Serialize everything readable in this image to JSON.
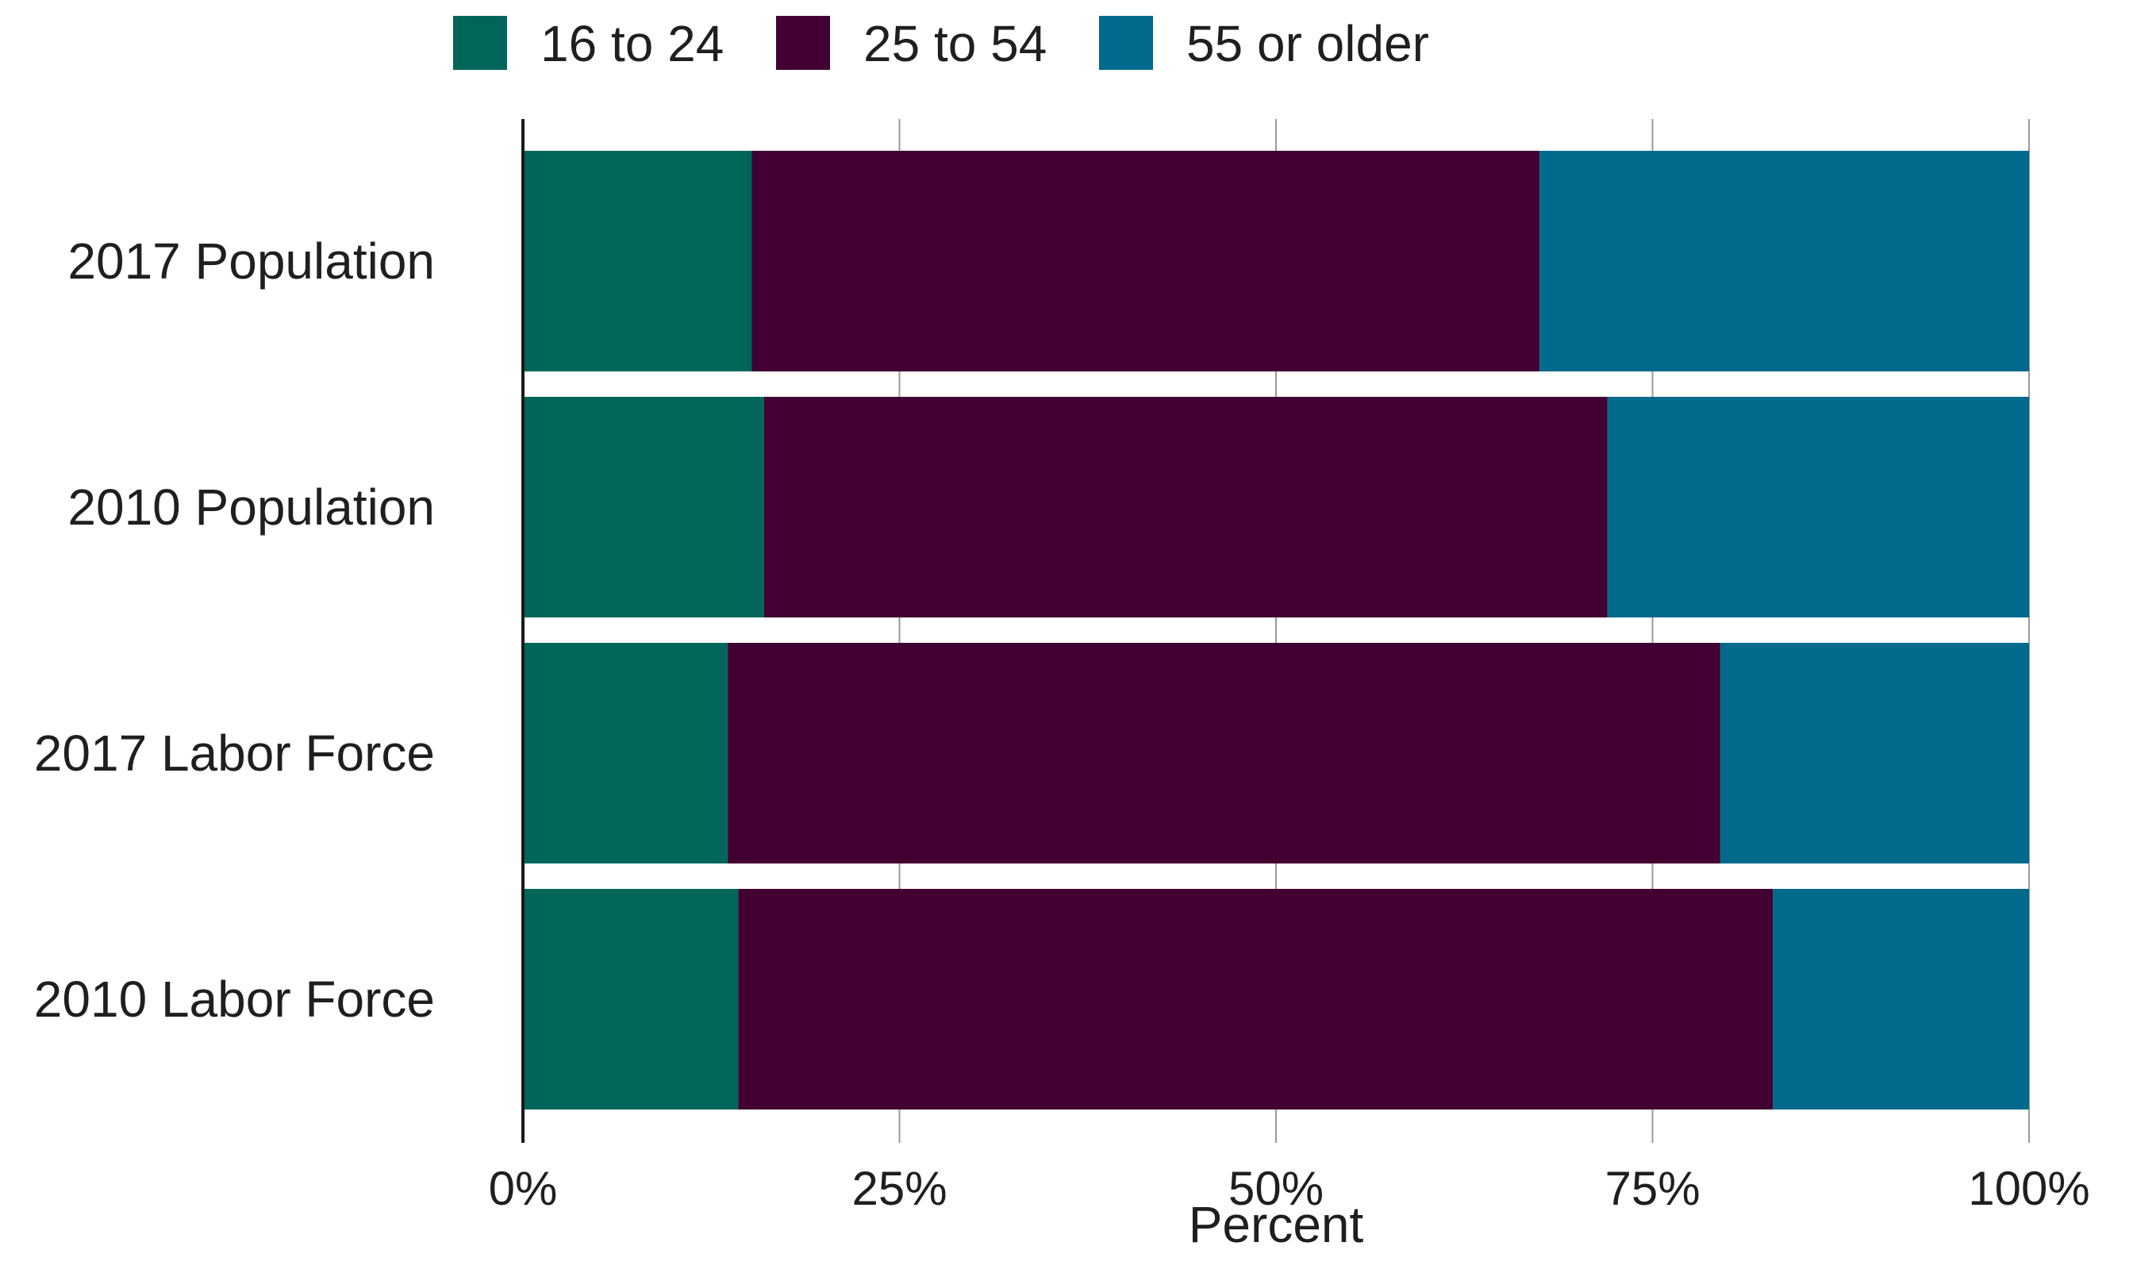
{
  "chart_data": {
    "type": "bar",
    "orientation": "horizontal",
    "stacked": true,
    "categories": [
      "2017 Population",
      "2010 Population",
      "2017 Labor Force",
      "2010 Labor Force"
    ],
    "series": [
      {
        "name": "16 to 24",
        "color": "#00665A",
        "values": [
          15.2,
          16.0,
          13.6,
          14.3
        ]
      },
      {
        "name": "25 to 54",
        "color": "#410031",
        "values": [
          52.3,
          56.0,
          65.9,
          68.7
        ]
      },
      {
        "name": "55 or older",
        "color": "#006A8C",
        "values": [
          32.5,
          28.0,
          20.5,
          17.0
        ]
      }
    ],
    "xlabel": "Percent",
    "xlim": [
      0,
      100
    ],
    "xticks": [
      0,
      25,
      50,
      75,
      100
    ],
    "xtick_labels": [
      "0%",
      "25%",
      "50%",
      "75%",
      "100%"
    ],
    "grid": "vertical",
    "legend_position": "top"
  }
}
